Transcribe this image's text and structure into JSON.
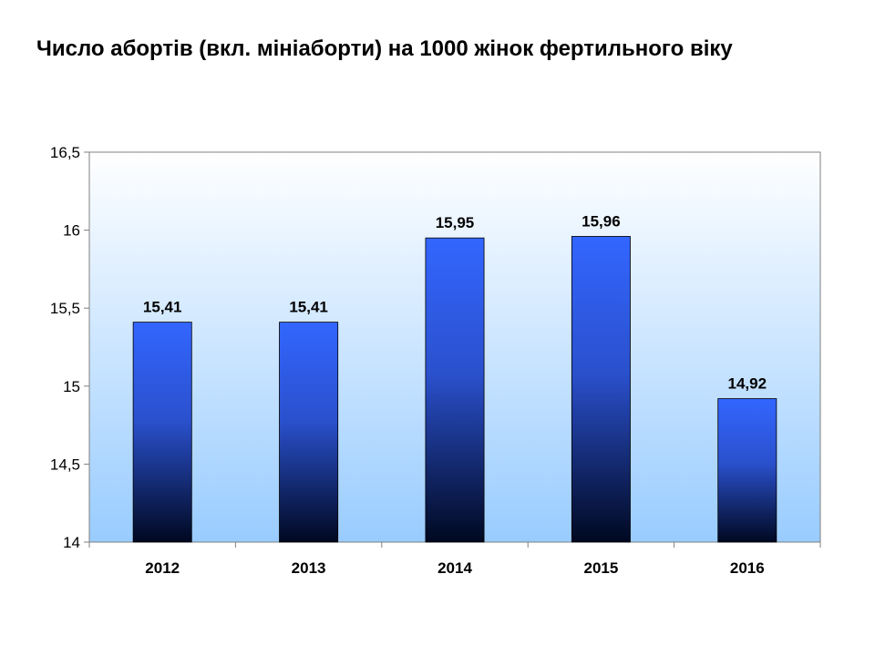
{
  "page": {
    "title": "Число абортів (вкл. мініаборти) на 1000 жінок фертильного віку"
  },
  "chart_data": {
    "type": "bar",
    "title": "Число абортів (вкл. мініаборти) на 1000 жінок фертильного віку",
    "categories": [
      "2012",
      "2013",
      "2014",
      "2015",
      "2016"
    ],
    "values": [
      15.41,
      15.41,
      15.95,
      15.96,
      14.92
    ],
    "value_labels": [
      "15,41",
      "15,41",
      "15,95",
      "15,96",
      "14,92"
    ],
    "y_ticks": [
      14,
      14.5,
      15,
      15.5,
      16,
      16.5
    ],
    "y_tick_labels": [
      "14",
      "14,5",
      "15",
      "15,5",
      "16",
      "16,5"
    ],
    "ylim": [
      14,
      16.5
    ],
    "xlabel": "",
    "ylabel": "",
    "grid": false,
    "legend": "none",
    "colors": {
      "bar_top": "#3366ff",
      "bar_bottom": "#000820",
      "plot_top": "#ffffff",
      "plot_bottom": "#99ccff",
      "axis": "#808080"
    }
  }
}
